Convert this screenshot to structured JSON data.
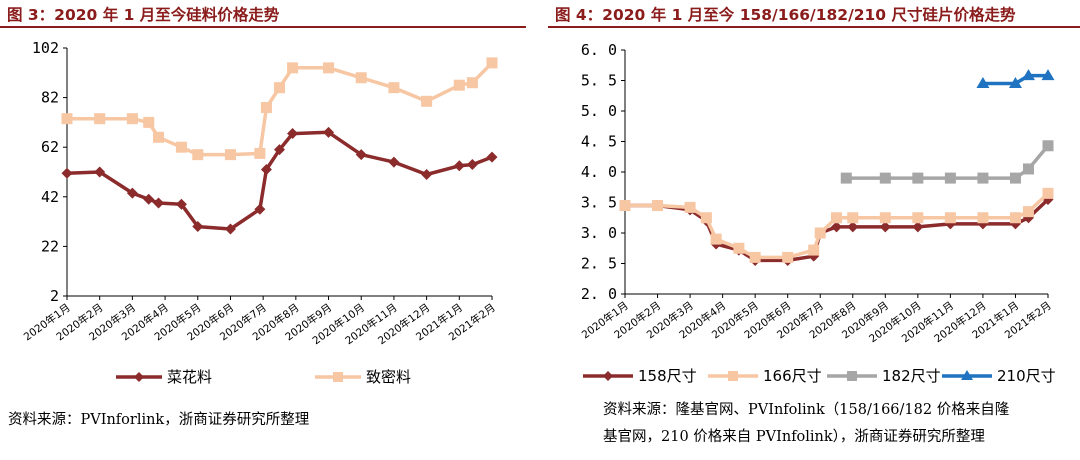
{
  "chart_data": [
    {
      "type": "line",
      "title": "图 3：2020 年 1 月至今硅料价格走势",
      "categories": [
        "2020年1月",
        "2020年2月",
        "2020年3月",
        "2020年4月",
        "2020年5月",
        "2020年6月",
        "2020年7月",
        "2020年8月",
        "2020年9月",
        "2020年10月",
        "2020年11月",
        "2020年12月",
        "2021年1月",
        "2021年2月"
      ],
      "ylim": [
        2,
        102
      ],
      "yticks": [
        "102",
        "82",
        "62",
        "42",
        "22",
        "2"
      ],
      "series": [
        {
          "name": "菜花料",
          "color": "#8b2b2b",
          "marker": "diamond",
          "points": [
            [
              0,
              51.5
            ],
            [
              1,
              52
            ],
            [
              2,
              43.5
            ],
            [
              2.5,
              41
            ],
            [
              2.8,
              39.5
            ],
            [
              3.5,
              39
            ],
            [
              4,
              30
            ],
            [
              5,
              29
            ],
            [
              5.9,
              37
            ],
            [
              6.1,
              53
            ],
            [
              6.5,
              61
            ],
            [
              6.9,
              67.5
            ],
            [
              8,
              68
            ],
            [
              9,
              59
            ],
            [
              10,
              56
            ],
            [
              11,
              51
            ],
            [
              12,
              54.5
            ],
            [
              12.4,
              55
            ],
            [
              13,
              58
            ]
          ]
        },
        {
          "name": "致密料",
          "color": "#f7c6a3",
          "marker": "square",
          "points": [
            [
              0,
              73.5
            ],
            [
              1,
              73.5
            ],
            [
              2,
              73.5
            ],
            [
              2.5,
              72
            ],
            [
              2.8,
              66
            ],
            [
              3.5,
              62
            ],
            [
              4,
              59
            ],
            [
              5,
              59
            ],
            [
              5.9,
              59.5
            ],
            [
              6.1,
              78
            ],
            [
              6.5,
              86
            ],
            [
              6.9,
              94
            ],
            [
              8,
              94
            ],
            [
              9,
              90
            ],
            [
              10,
              86
            ],
            [
              11,
              80.5
            ],
            [
              12,
              87
            ],
            [
              12.4,
              88
            ],
            [
              13,
              96
            ]
          ]
        }
      ]
    },
    {
      "type": "line",
      "title": "图 4：2020 年 1 月至今 158/166/182/210 尺寸硅片价格走势",
      "categories": [
        "2020年1月",
        "2020年2月",
        "2020年3月",
        "2020年4月",
        "2020年5月",
        "2020年6月",
        "2020年7月",
        "2020年8月",
        "2020年9月",
        "2020年10月",
        "2020年11月",
        "2020年12月",
        "2021年1月",
        "2021年2月"
      ],
      "ylim": [
        2.0,
        6.0
      ],
      "yticks": [
        "6. 0",
        "5. 5",
        "5. 0",
        "4. 5",
        "4. 0",
        "3. 5",
        "3. 0",
        "2. 5",
        "2. 0"
      ],
      "series": [
        {
          "name": "158尺寸",
          "color": "#8b2b2b",
          "marker": "diamond",
          "points": [
            [
              0,
              3.45
            ],
            [
              1,
              3.45
            ],
            [
              2,
              3.38
            ],
            [
              2.5,
              3.2
            ],
            [
              2.8,
              2.82
            ],
            [
              3.5,
              2.72
            ],
            [
              4,
              2.55
            ],
            [
              5,
              2.55
            ],
            [
              5.8,
              2.62
            ],
            [
              6,
              3.0
            ],
            [
              6.5,
              3.1
            ],
            [
              7,
              3.1
            ],
            [
              8,
              3.1
            ],
            [
              9,
              3.1
            ],
            [
              10,
              3.15
            ],
            [
              11,
              3.15
            ],
            [
              12,
              3.15
            ],
            [
              12.4,
              3.25
            ],
            [
              13,
              3.55
            ]
          ]
        },
        {
          "name": "166尺寸",
          "color": "#f7c6a3",
          "marker": "square",
          "points": [
            [
              0,
              3.45
            ],
            [
              1,
              3.45
            ],
            [
              2,
              3.42
            ],
            [
              2.5,
              3.25
            ],
            [
              2.8,
              2.9
            ],
            [
              3.5,
              2.75
            ],
            [
              4,
              2.6
            ],
            [
              5,
              2.6
            ],
            [
              5.8,
              2.72
            ],
            [
              6,
              3.0
            ],
            [
              6.5,
              3.25
            ],
            [
              7,
              3.25
            ],
            [
              8,
              3.25
            ],
            [
              9,
              3.25
            ],
            [
              10,
              3.25
            ],
            [
              11,
              3.25
            ],
            [
              12,
              3.25
            ],
            [
              12.4,
              3.35
            ],
            [
              13,
              3.65
            ]
          ]
        },
        {
          "name": "182尺寸",
          "color": "#a6a6a6",
          "marker": "square",
          "points": [
            [
              6.8,
              3.9
            ],
            [
              8,
              3.9
            ],
            [
              9,
              3.9
            ],
            [
              10,
              3.9
            ],
            [
              11,
              3.9
            ],
            [
              12,
              3.9
            ],
            [
              12.4,
              4.05
            ],
            [
              13,
              4.43
            ]
          ]
        },
        {
          "name": "210尺寸",
          "color": "#1f73c0",
          "marker": "triangle",
          "points": [
            [
              11,
              5.45
            ],
            [
              12,
              5.45
            ],
            [
              12.4,
              5.58
            ],
            [
              13,
              5.58
            ]
          ]
        }
      ]
    }
  ],
  "sources": {
    "left": "资料来源：PVInforlink，浙商证券研究所整理",
    "right_line1": "资料来源：隆基官网、PVInfolink（158/166/182 价格来自隆",
    "right_line2": "基官网，210 价格来自 PVInfolink），浙商证券研究所整理"
  }
}
